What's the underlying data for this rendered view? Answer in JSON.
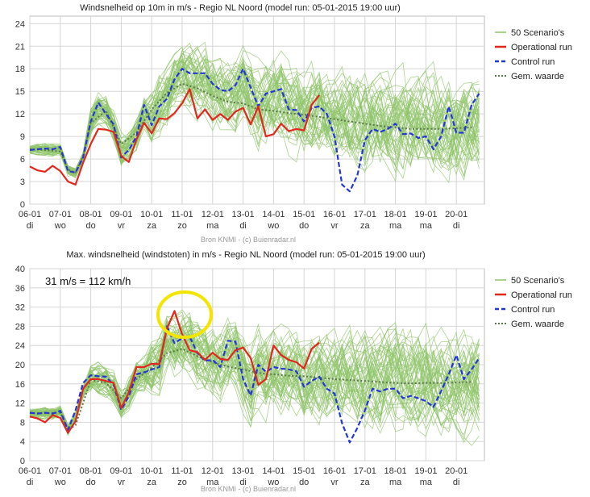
{
  "chart_data": [
    {
      "type": "line",
      "title": "Windsnelheid op 10m in m/s - Regio NL Noord (model run: 05-01-2015 19:00 uur)",
      "ylim": [
        0,
        25
      ],
      "yticks": [
        0,
        3,
        6,
        9,
        12,
        15,
        18,
        21,
        24
      ],
      "categories": [
        "06-01",
        "07-01",
        "08-01",
        "09-01",
        "10-01",
        "11-01",
        "12-01",
        "13-01",
        "14-01",
        "15-01",
        "16-01",
        "17-01",
        "18-01",
        "19-01",
        "20-01"
      ],
      "weekdays": [
        "di",
        "wo",
        "do",
        "vr",
        "za",
        "zo",
        "ma",
        "di",
        "wo",
        "do",
        "vr",
        "za",
        "ma",
        "ma",
        "di"
      ],
      "source": "Bron KNMI - (c) Buienradar.nl",
      "legend": [
        "50 Scenario's",
        "Operational run",
        "Control run",
        "Gem. waarde"
      ],
      "colors": {
        "scenarios": "#8fc46a",
        "operational": "#e0281e",
        "control": "#2437d6",
        "mean": "#5b7a4b"
      },
      "series": [
        {
          "name": "Operational run",
          "x": [
            0,
            0.25,
            0.5,
            0.75,
            1,
            1.25,
            1.5,
            1.75,
            2,
            2.25,
            2.5,
            2.75,
            3,
            3.25,
            3.5,
            3.75,
            4,
            4.25,
            4.5,
            4.75,
            5,
            5.25,
            5.5,
            5.75,
            6,
            6.25,
            6.5,
            6.75,
            7,
            7.25,
            7.5,
            7.75,
            8,
            8.25,
            8.5,
            8.75,
            9,
            9.25,
            9.5
          ],
          "values": [
            5.0,
            4.5,
            4.3,
            5.1,
            4.4,
            3.0,
            2.6,
            5.5,
            8.0,
            10.0,
            9.9,
            9.6,
            6.4,
            5.6,
            8.6,
            10.8,
            9.4,
            11.4,
            11.3,
            12.1,
            13.4,
            15.3,
            11.4,
            12.6,
            11.2,
            12.0,
            11.2,
            12.3,
            12.8,
            10.6,
            13.0,
            9.0,
            9.3,
            10.7,
            9.7,
            10.0,
            9.8,
            13.2,
            14.5
          ]
        },
        {
          "name": "Control run",
          "x": [
            0,
            0.25,
            0.5,
            0.75,
            1,
            1.25,
            1.5,
            1.75,
            2,
            2.25,
            2.5,
            2.75,
            3,
            3.25,
            3.5,
            3.75,
            4,
            4.25,
            4.5,
            4.75,
            5,
            5.25,
            5.5,
            5.75,
            6,
            6.25,
            6.5,
            6.75,
            7,
            7.25,
            7.5,
            7.75,
            8,
            8.25,
            8.5,
            8.75,
            9,
            9.25,
            9.5,
            9.75,
            10,
            10.25,
            10.5,
            10.75,
            11,
            11.25,
            11.5,
            11.75,
            12,
            12.25,
            12.5,
            12.75,
            13,
            13.25,
            13.5,
            13.75,
            14,
            14.25,
            14.5,
            14.75
          ],
          "values": [
            7.2,
            7.3,
            7.4,
            7.3,
            7.6,
            4.4,
            4.2,
            6.2,
            11.0,
            13.5,
            12.0,
            10.6,
            6.2,
            7.2,
            9.0,
            13.2,
            10.5,
            13.0,
            14.0,
            16.6,
            18.0,
            17.4,
            17.4,
            17.4,
            16.0,
            15.2,
            15.0,
            15.8,
            18.0,
            15.5,
            13.0,
            14.7,
            15.0,
            15.3,
            12.6,
            12.5,
            11.0,
            12.8,
            13.0,
            12.0,
            9.0,
            2.6,
            1.7,
            3.8,
            8.5,
            10.0,
            9.6,
            10.0,
            10.7,
            9.3,
            9.4,
            8.8,
            9.0,
            7.3,
            9.0,
            13.0,
            9.5,
            9.5,
            13.2,
            14.7
          ]
        },
        {
          "name": "Gem. waarde",
          "x": [
            0,
            0.5,
            1,
            1.25,
            1.5,
            1.75,
            2,
            2.5,
            3,
            3.5,
            4,
            4.5,
            5,
            5.5,
            6,
            6.5,
            7,
            7.5,
            8,
            8.5,
            9,
            9.5,
            10,
            10.5,
            11,
            11.5,
            12,
            12.5,
            13,
            13.5,
            14,
            14.5
          ],
          "values": [
            7.3,
            7.2,
            7.0,
            4.6,
            4.2,
            6.4,
            10.8,
            12.4,
            8.0,
            9.5,
            12.6,
            14.8,
            16.0,
            15.4,
            14.4,
            13.6,
            13.4,
            12.6,
            12.4,
            12.1,
            11.9,
            11.6,
            11.3,
            11.0,
            10.7,
            10.4,
            10.2,
            10.0,
            10.0,
            10.0,
            10.1,
            10.2
          ]
        }
      ]
    },
    {
      "type": "line",
      "title": "Max. windsnelheid (windstoten) in m/s - Regio NL Noord (model run: 05-01-2015 19:00 uur)",
      "ylim": [
        0,
        40
      ],
      "yticks": [
        0,
        4,
        8,
        12,
        16,
        20,
        24,
        28,
        32,
        36,
        40
      ],
      "categories": [
        "06-01",
        "07-01",
        "08-01",
        "09-01",
        "10-01",
        "11-01",
        "12-01",
        "13-01",
        "14-01",
        "15-01",
        "16-01",
        "17-01",
        "18-01",
        "19-01",
        "20-01"
      ],
      "weekdays": [
        "di",
        "wo",
        "do",
        "vr",
        "za",
        "zo",
        "ma",
        "di",
        "wo",
        "do",
        "vr",
        "za",
        "ma",
        "ma",
        "di"
      ],
      "source": "Bron KNMI - (c) Buienradar.nl",
      "annotation": "31 m/s = 112 km/h",
      "legend": [
        "50 Scenario's",
        "Operational run",
        "Control run",
        "Gem. waarde"
      ],
      "colors": {
        "scenarios": "#8fc46a",
        "operational": "#e0281e",
        "control": "#2437d6",
        "mean": "#5b7a4b",
        "highlight": "#f2e500"
      },
      "series": [
        {
          "name": "Operational run",
          "x": [
            0,
            0.25,
            0.5,
            0.75,
            1,
            1.25,
            1.5,
            1.75,
            2,
            2.25,
            2.5,
            2.75,
            3,
            3.25,
            3.5,
            3.75,
            4,
            4.25,
            4.5,
            4.75,
            5,
            5.25,
            5.5,
            5.75,
            6,
            6.25,
            6.5,
            6.75,
            7,
            7.25,
            7.5,
            7.75,
            8,
            8.25,
            8.5,
            8.75,
            9,
            9.25,
            9.5
          ],
          "values": [
            9.2,
            8.8,
            8.0,
            9.5,
            8.9,
            5.8,
            8.2,
            15.0,
            17.0,
            17.0,
            16.6,
            16.2,
            11.0,
            14.2,
            19.5,
            19.5,
            20.2,
            20.1,
            27.5,
            31.2,
            26.3,
            23.0,
            22.6,
            21.0,
            22.5,
            21.2,
            21.0,
            23.0,
            23.6,
            21.4,
            15.8,
            17.0,
            24.0,
            22.0,
            21.0,
            20.5,
            19.2,
            23.3,
            24.6
          ]
        },
        {
          "name": "Control run",
          "x": [
            0,
            0.25,
            0.5,
            0.75,
            1,
            1.25,
            1.5,
            1.75,
            2,
            2.25,
            2.5,
            2.75,
            3,
            3.25,
            3.5,
            3.75,
            4,
            4.25,
            4.5,
            4.75,
            5,
            5.25,
            5.5,
            5.75,
            6,
            6.25,
            6.5,
            6.75,
            7,
            7.25,
            7.5,
            7.75,
            8,
            8.25,
            8.5,
            8.75,
            9,
            9.25,
            9.5,
            9.75,
            10,
            10.25,
            10.5,
            10.75,
            11,
            11.25,
            11.5,
            11.75,
            12,
            12.25,
            12.5,
            12.75,
            13,
            13.25,
            13.5,
            13.75,
            14,
            14.25,
            14.5,
            14.75
          ],
          "values": [
            10.0,
            9.8,
            10.0,
            9.8,
            10.4,
            6.4,
            10.5,
            16.2,
            17.8,
            17.6,
            17.5,
            15.8,
            10.6,
            13.4,
            18.0,
            18.4,
            19.0,
            19.5,
            28.0,
            24.5,
            25.5,
            25.8,
            22.4,
            20.8,
            21.0,
            19.5,
            25.0,
            24.8,
            17.0,
            13.6,
            20.0,
            18.5,
            19.5,
            19.2,
            19.0,
            18.6,
            15.4,
            16.6,
            17.5,
            15.0,
            14.0,
            7.8,
            3.8,
            6.8,
            10.5,
            15.0,
            14.4,
            15.0,
            15.0,
            13.0,
            13.5,
            13.0,
            12.4,
            11.2,
            14.5,
            18.0,
            22.0,
            17.0,
            19.0,
            21.4
          ]
        },
        {
          "name": "Gem. waarde",
          "x": [
            0,
            0.5,
            1,
            1.25,
            1.5,
            1.75,
            2,
            2.5,
            3,
            3.5,
            4,
            4.5,
            5,
            5.5,
            6,
            6.5,
            7,
            7.5,
            8,
            8.5,
            9,
            9.5,
            10,
            10.5,
            11,
            11.5,
            12,
            12.5,
            13,
            13.5,
            14,
            14.5
          ],
          "values": [
            9.9,
            9.9,
            10.0,
            6.4,
            7.4,
            12.0,
            16.8,
            16.2,
            13.0,
            17.0,
            19.4,
            22.4,
            23.3,
            21.8,
            20.5,
            19.6,
            19.0,
            18.3,
            18.0,
            17.7,
            17.6,
            17.3,
            17.0,
            16.8,
            16.6,
            16.4,
            16.2,
            16.1,
            16.2,
            16.2,
            16.3,
            16.4
          ]
        }
      ]
    }
  ]
}
